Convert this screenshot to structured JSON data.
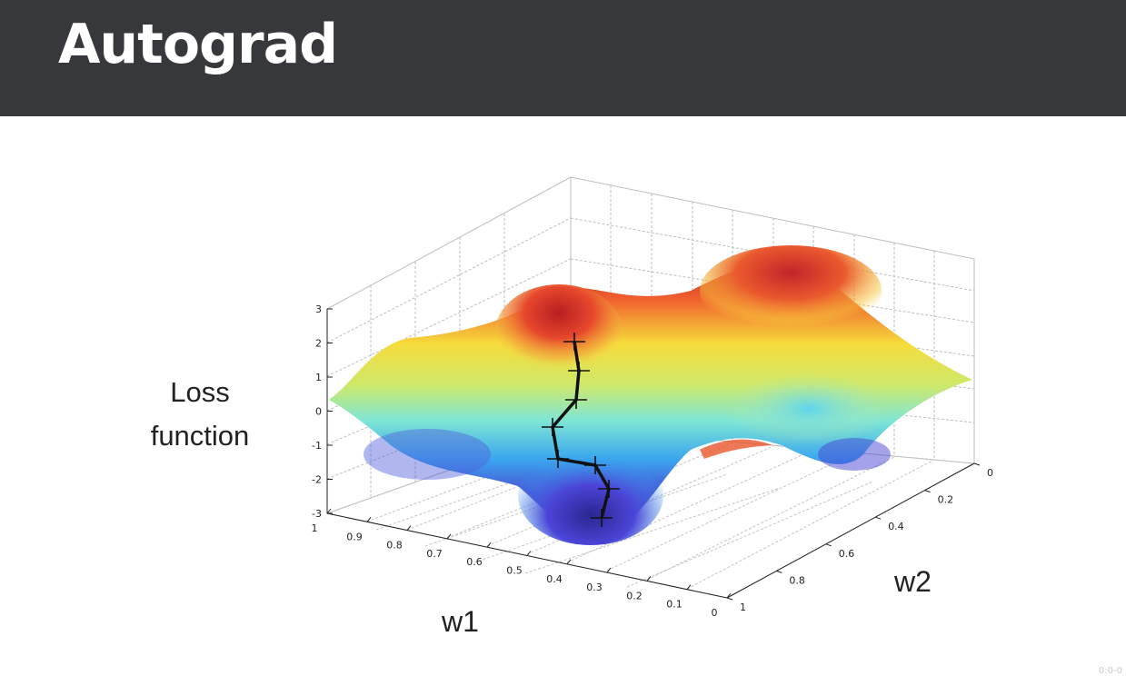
{
  "slide": {
    "title": "Autograd",
    "y_axis_label_line1": "Loss",
    "y_axis_label_line2": "function",
    "x_axis_label": "w1",
    "z_axis_label": "w2",
    "corner_note": "0:0-0"
  },
  "colors": {
    "header_bg": "#36383b",
    "title_text": "#ffffff",
    "surface_high": "#d7302a",
    "surface_low": "#2d2b9a",
    "path": "#111111"
  },
  "chart_data": {
    "type": "surface3d",
    "y_ticks": [
      "3",
      "2",
      "1",
      "0",
      "-1",
      "-2",
      "-3"
    ],
    "w1_ticks": [
      "1",
      "0.9",
      "0.8",
      "0.7",
      "0.6",
      "0.5",
      "0.4",
      "0.3",
      "0.2",
      "0.1",
      "0"
    ],
    "w2_ticks": [
      "0",
      "0.2",
      "0.4",
      "0.6",
      "0.8",
      "1"
    ],
    "grid": true
  }
}
